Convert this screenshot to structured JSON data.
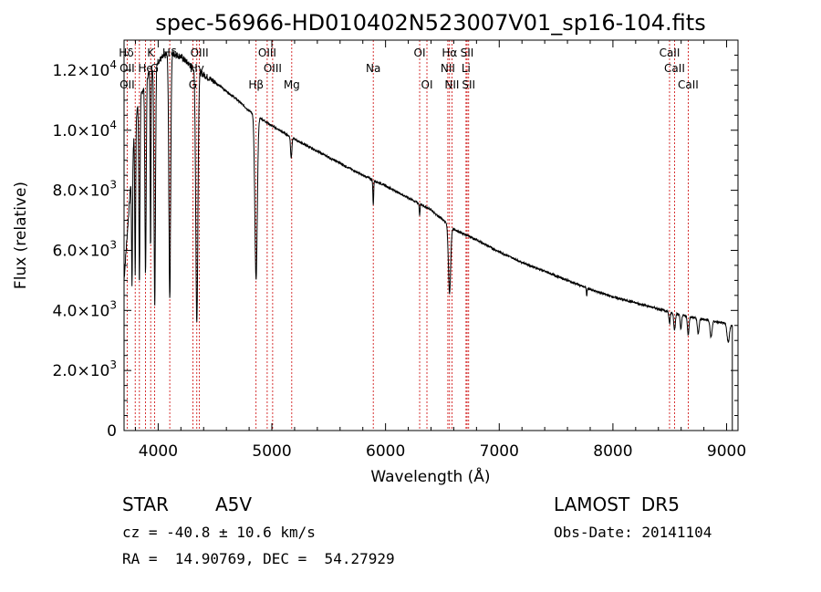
{
  "chart_data": {
    "type": "line",
    "title": "spec-56966-HD010402N523007V01_sp16-104.fits",
    "xlabel": "Wavelength (Å)",
    "ylabel": "Flux (relative)",
    "xlim": [
      3700,
      9100
    ],
    "ylim": [
      0,
      13000
    ],
    "x_ticks": [
      4000,
      5000,
      6000,
      7000,
      8000,
      9000
    ],
    "y_ticks": [
      {
        "value": 0,
        "mant": "0",
        "exp": ""
      },
      {
        "value": 2000,
        "mant": "2.0×10",
        "exp": "3"
      },
      {
        "value": 4000,
        "mant": "4.0×10",
        "exp": "3"
      },
      {
        "value": 6000,
        "mant": "6.0×10",
        "exp": "3"
      },
      {
        "value": 8000,
        "mant": "8.0×10",
        "exp": "3"
      },
      {
        "value": 10000,
        "mant": "1.0×10",
        "exp": "4"
      },
      {
        "value": 12000,
        "mant": "1.2×10",
        "exp": "4"
      }
    ],
    "continuum": [
      [
        3700,
        5000
      ],
      [
        3800,
        10500
      ],
      [
        3900,
        11800
      ],
      [
        4000,
        12300
      ],
      [
        4100,
        12600
      ],
      [
        4200,
        12450
      ],
      [
        4300,
        12100
      ],
      [
        4400,
        11850
      ],
      [
        4500,
        11600
      ],
      [
        4600,
        11300
      ],
      [
        4700,
        11000
      ],
      [
        4800,
        10650
      ],
      [
        4900,
        10400
      ],
      [
        5000,
        10150
      ],
      [
        5200,
        9700
      ],
      [
        5400,
        9300
      ],
      [
        5600,
        8900
      ],
      [
        5800,
        8500
      ],
      [
        6000,
        8150
      ],
      [
        6200,
        7750
      ],
      [
        6400,
        7350
      ],
      [
        6600,
        6700
      ],
      [
        6800,
        6350
      ],
      [
        7000,
        5950
      ],
      [
        7200,
        5600
      ],
      [
        7400,
        5300
      ],
      [
        7600,
        5000
      ],
      [
        7800,
        4700
      ],
      [
        8000,
        4450
      ],
      [
        8200,
        4250
      ],
      [
        8400,
        4050
      ],
      [
        8600,
        3850
      ],
      [
        8800,
        3700
      ],
      [
        9000,
        3550
      ],
      [
        9050,
        3500
      ]
    ],
    "absorption": [
      {
        "x": 3770,
        "depth": 0.45,
        "width": 6
      },
      {
        "x": 3798,
        "depth": 0.5,
        "width": 6
      },
      {
        "x": 3835,
        "depth": 0.55,
        "width": 7
      },
      {
        "x": 3889,
        "depth": 0.55,
        "width": 8
      },
      {
        "x": 3933,
        "depth": 0.5,
        "width": 5
      },
      {
        "x": 3970,
        "depth": 0.65,
        "width": 9
      },
      {
        "x": 4102,
        "depth": 0.65,
        "width": 11
      },
      {
        "x": 4340,
        "depth": 0.7,
        "width": 13
      },
      {
        "x": 4861,
        "depth": 0.52,
        "width": 15
      },
      {
        "x": 5170,
        "depth": 0.07,
        "width": 8
      },
      {
        "x": 5892,
        "depth": 0.1,
        "width": 5
      },
      {
        "x": 6300,
        "depth": 0.05,
        "width": 5
      },
      {
        "x": 6563,
        "depth": 0.33,
        "width": 14
      },
      {
        "x": 7770,
        "depth": 0.06,
        "width": 4
      },
      {
        "x": 8498,
        "depth": 0.1,
        "width": 8
      },
      {
        "x": 8542,
        "depth": 0.14,
        "width": 10
      },
      {
        "x": 8598,
        "depth": 0.12,
        "width": 9
      },
      {
        "x": 8662,
        "depth": 0.16,
        "width": 10
      },
      {
        "x": 8750,
        "depth": 0.13,
        "width": 11
      },
      {
        "x": 8863,
        "depth": 0.15,
        "width": 12
      },
      {
        "x": 9014,
        "depth": 0.17,
        "width": 14
      }
    ],
    "annotations": [
      {
        "label": "Hδ",
        "x": 3720,
        "row": 1
      },
      {
        "label": "K",
        "x": 3934,
        "row": 1
      },
      {
        "label": "Hδ",
        "x": 4102,
        "row": 1
      },
      {
        "label": "OIII",
        "x": 4363,
        "row": 1
      },
      {
        "label": "OIII",
        "x": 4959,
        "row": 1
      },
      {
        "label": "OI",
        "x": 6300,
        "row": 1
      },
      {
        "label": "Hα",
        "x": 6563,
        "row": 1
      },
      {
        "label": "SII",
        "x": 6717,
        "row": 1
      },
      {
        "label": "CaII",
        "x": 8498,
        "row": 1
      },
      {
        "label": "OII",
        "x": 3727,
        "row": 2
      },
      {
        "label": "He",
        "x": 3889,
        "row": 2
      },
      {
        "label": "G",
        "x": 3968,
        "row": 2
      },
      {
        "label": "Hγ",
        "x": 4340,
        "row": 2
      },
      {
        "label": "OIII",
        "x": 5007,
        "row": 2
      },
      {
        "label": "Na",
        "x": 5892,
        "row": 2
      },
      {
        "label": "NII",
        "x": 6548,
        "row": 2
      },
      {
        "label": "Li",
        "x": 6708,
        "row": 2
      },
      {
        "label": "CaII",
        "x": 8542,
        "row": 2
      },
      {
        "label": "OII",
        "x": 3727,
        "row": 3
      },
      {
        "label": "G",
        "x": 4305,
        "row": 3
      },
      {
        "label": "Hβ",
        "x": 4861,
        "row": 3
      },
      {
        "label": "Mg",
        "x": 5175,
        "row": 3
      },
      {
        "label": "OI",
        "x": 6364,
        "row": 3
      },
      {
        "label": "NII",
        "x": 6584,
        "row": 3
      },
      {
        "label": "SII",
        "x": 6731,
        "row": 3
      },
      {
        "label": "CaII",
        "x": 8662,
        "row": 3
      }
    ],
    "line_markers": [
      3727,
      3798,
      3835,
      3889,
      3934,
      3968,
      4102,
      4305,
      4340,
      4363,
      4861,
      4959,
      5007,
      5175,
      5892,
      6300,
      6364,
      6548,
      6563,
      6584,
      6708,
      6717,
      6731,
      8498,
      8542,
      8662
    ],
    "colors": {
      "spectrum": "#000000",
      "markers": "#cc0000",
      "axes": "#000000"
    }
  },
  "info": {
    "object_type": "STAR",
    "subclass": "A5V",
    "survey": "LAMOST  DR5",
    "cz": "cz = -40.8 ± 10.6 km/s",
    "obs_date": "Obs-Date: 20141104",
    "coords": "RA =  14.90769, DEC =  54.27929"
  }
}
